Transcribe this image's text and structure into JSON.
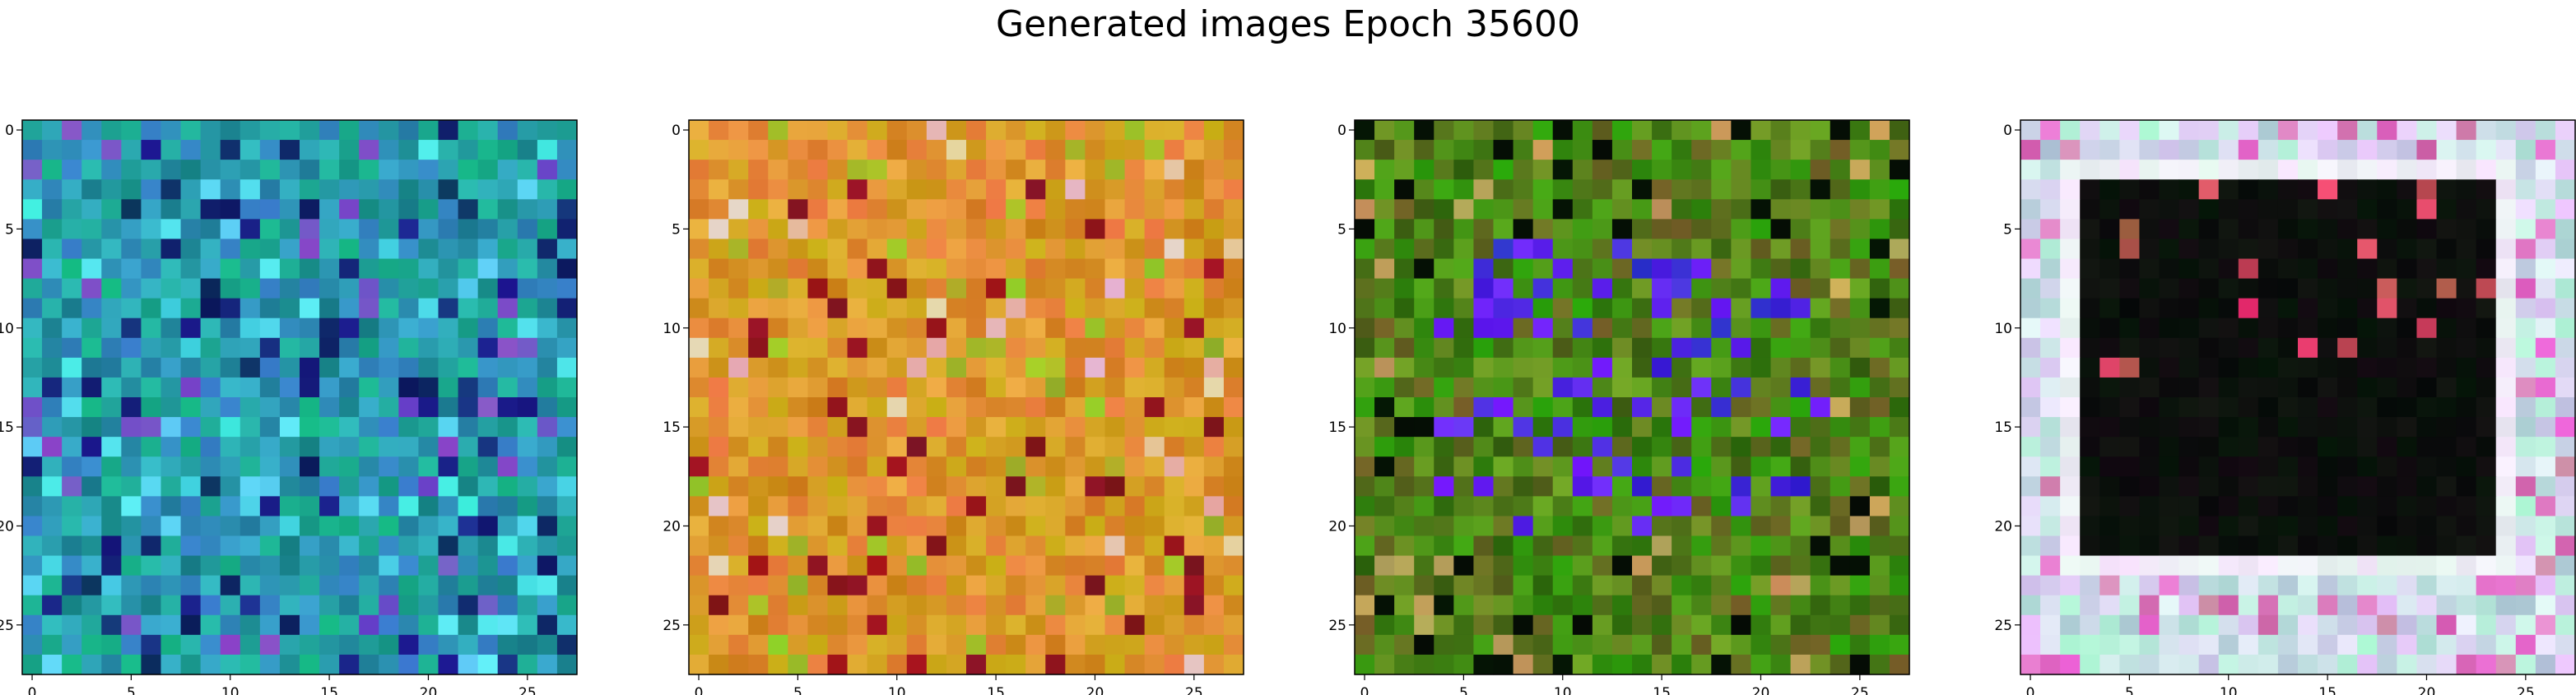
{
  "title": "Generated images Epoch 35600",
  "chart_data": [
    {
      "type": "heatmap",
      "name": "generated-image-1",
      "palette": "teal-blue",
      "xticks": [
        0,
        5,
        10,
        15,
        20,
        25
      ],
      "yticks": [
        0,
        5,
        10,
        15,
        20,
        25
      ],
      "xlim": [
        -0.5,
        27.5
      ],
      "ylim": [
        27.5,
        -0.5
      ],
      "grid": false
    },
    {
      "type": "heatmap",
      "name": "generated-image-2",
      "palette": "orange-yellow",
      "xticks": [
        0,
        5,
        10,
        15,
        20,
        25
      ],
      "yticks": [
        0,
        5,
        10,
        15,
        20,
        25
      ],
      "xlim": [
        -0.5,
        27.5
      ],
      "ylim": [
        27.5,
        -0.5
      ],
      "grid": false
    },
    {
      "type": "heatmap",
      "name": "generated-image-3",
      "palette": "green-blue",
      "xticks": [
        0,
        5,
        10,
        15,
        20,
        25
      ],
      "yticks": [
        0,
        5,
        10,
        15,
        20,
        25
      ],
      "xlim": [
        -0.5,
        27.5
      ],
      "ylim": [
        27.5,
        -0.5
      ],
      "grid": false
    },
    {
      "type": "heatmap",
      "name": "generated-image-4",
      "palette": "pastel-frame-dark-center",
      "xticks": [
        0,
        5,
        10,
        15,
        20,
        25
      ],
      "yticks": [
        0,
        5,
        10,
        15,
        20,
        25
      ],
      "xlim": [
        -0.5,
        27.5
      ],
      "ylim": [
        27.5,
        -0.5
      ],
      "grid": false
    }
  ]
}
